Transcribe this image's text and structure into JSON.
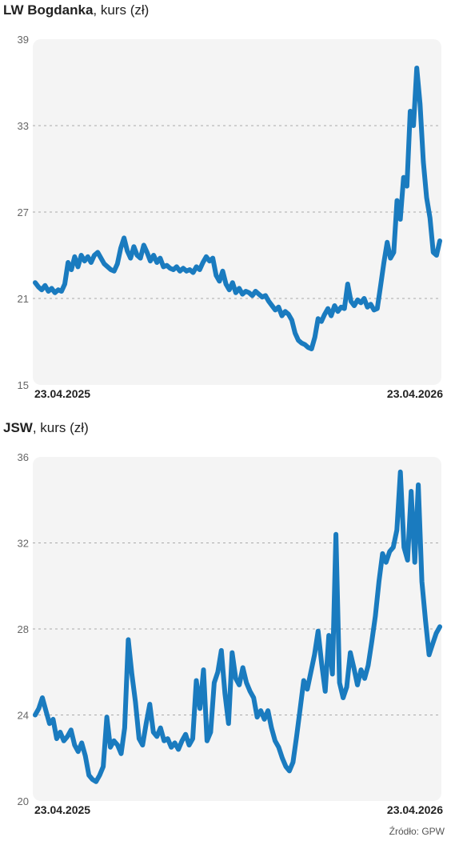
{
  "charts": [
    {
      "title_bold": "LW Bogdanka",
      "title_rest": ", kurs (zł)"
    },
    {
      "title_bold": "JSW",
      "title_rest": ", kurs (zł)"
    }
  ],
  "source": "Źródło: GPW",
  "colors": {
    "line": "#1a7bbf",
    "plot_bg": "#f4f4f4",
    "grid": "#aaaaaa"
  },
  "chart_data": [
    {
      "type": "line",
      "title": "LW Bogdanka, kurs (zł)",
      "ylim": [
        15,
        39
      ],
      "yticks": [
        15,
        21,
        27,
        33,
        39
      ],
      "x_tick_labels": [
        "23.04.2025",
        "23.04.2026"
      ],
      "grid": "horizontal-dashed",
      "series": [
        {
          "values": [
            22.1,
            21.8,
            21.6,
            21.9,
            21.5,
            21.7,
            21.4,
            21.6,
            21.5,
            22.0,
            23.5,
            23.0,
            23.9,
            23.2,
            24.0,
            23.6,
            23.9,
            23.5,
            24.0,
            24.2,
            23.8,
            23.4,
            23.2,
            23.0,
            22.9,
            23.4,
            24.5,
            25.2,
            24.3,
            23.8,
            24.6,
            24.0,
            23.8,
            24.7,
            24.2,
            23.6,
            24.0,
            23.5,
            23.8,
            23.2,
            23.3,
            23.1,
            23.0,
            23.2,
            22.9,
            23.1,
            22.9,
            23.0,
            22.8,
            23.2,
            23.0,
            23.5,
            23.9,
            23.6,
            23.8,
            22.6,
            22.2,
            22.9,
            22.0,
            21.6,
            22.1,
            21.4,
            21.7,
            21.3,
            21.5,
            21.4,
            21.2,
            21.5,
            21.3,
            21.1,
            21.2,
            20.8,
            20.5,
            20.2,
            20.4,
            19.8,
            20.1,
            19.9,
            19.5,
            18.6,
            18.1,
            17.9,
            17.8,
            17.6,
            17.5,
            18.3,
            19.6,
            19.4,
            19.9,
            20.3,
            19.8,
            20.5,
            20.1,
            20.4,
            20.3,
            22.0,
            20.8,
            20.5,
            20.9,
            20.7,
            21.0,
            20.4,
            20.6,
            20.2,
            20.3,
            21.9,
            23.5,
            24.9,
            23.8,
            24.2,
            27.8,
            26.5,
            29.4,
            28.8,
            34.0,
            33.0,
            37.0,
            34.5,
            30.5,
            28.0,
            26.6,
            24.2,
            24.0,
            25.0
          ]
        }
      ]
    },
    {
      "type": "line",
      "title": "JSW, kurs (zł)",
      "ylim": [
        20,
        36
      ],
      "yticks": [
        20,
        24,
        28,
        32,
        36
      ],
      "x_tick_labels": [
        "23.04.2025",
        "23.04.2026"
      ],
      "grid": "horizontal-dashed",
      "series": [
        {
          "values": [
            24.0,
            24.3,
            24.8,
            24.2,
            23.6,
            23.8,
            22.9,
            23.2,
            22.8,
            23.0,
            23.3,
            22.6,
            22.3,
            22.7,
            22.1,
            21.2,
            21.0,
            20.9,
            21.2,
            21.6,
            23.9,
            22.5,
            22.8,
            22.6,
            22.2,
            23.4,
            27.5,
            25.9,
            24.6,
            22.9,
            22.6,
            23.6,
            24.5,
            23.2,
            23.0,
            23.4,
            22.8,
            22.9,
            22.5,
            22.7,
            22.4,
            22.8,
            23.1,
            22.6,
            22.9,
            25.6,
            24.3,
            26.1,
            22.8,
            23.2,
            25.5,
            26.0,
            27.0,
            25.0,
            23.6,
            26.9,
            25.7,
            25.4,
            26.2,
            25.5,
            25.1,
            24.8,
            23.9,
            24.2,
            23.8,
            24.2,
            23.4,
            22.8,
            22.5,
            22.0,
            21.6,
            21.4,
            21.8,
            23.0,
            24.3,
            25.6,
            25.2,
            26.0,
            26.8,
            27.9,
            26.4,
            25.1,
            27.7,
            25.9,
            32.4,
            25.5,
            24.8,
            25.3,
            26.9,
            26.2,
            25.4,
            26.1,
            25.7,
            26.3,
            27.4,
            28.6,
            30.2,
            31.5,
            31.1,
            31.6,
            31.8,
            32.6,
            35.3,
            31.8,
            31.2,
            34.4,
            31.1,
            34.7,
            30.2,
            28.4,
            26.8,
            27.3,
            27.8,
            28.1
          ]
        }
      ]
    }
  ]
}
